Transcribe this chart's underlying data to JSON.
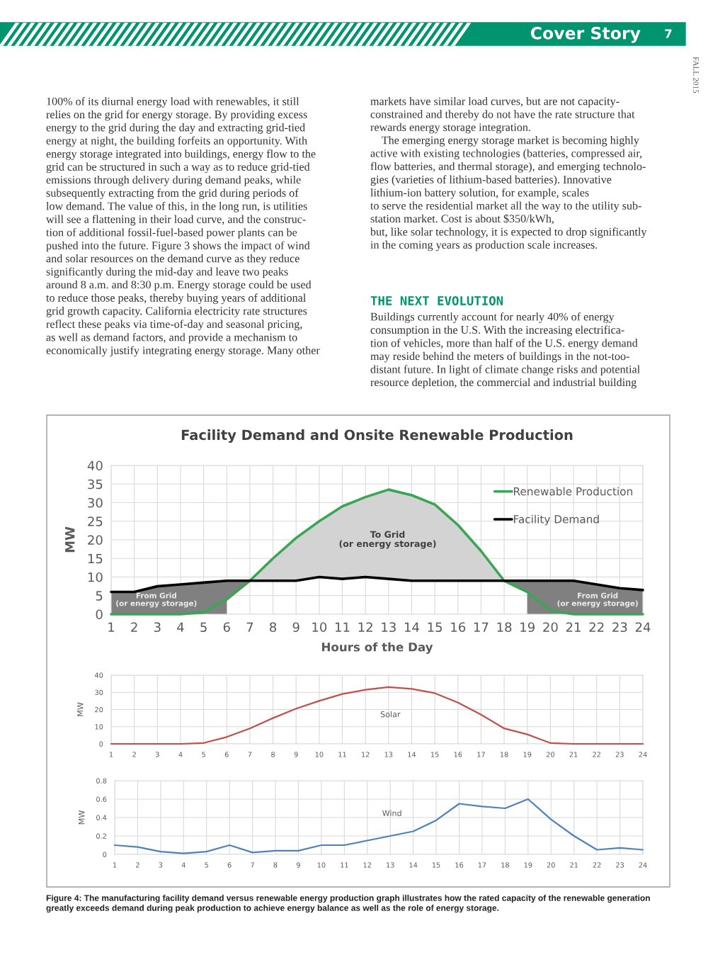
{
  "chart_data": [
    {
      "type": "line",
      "title": "Facility Demand and Onsite Renewable Production",
      "xlabel": "Hours of the Day",
      "ylabel": "MW",
      "x": [
        1,
        2,
        3,
        4,
        5,
        6,
        7,
        8,
        9,
        10,
        11,
        12,
        13,
        14,
        15,
        16,
        17,
        18,
        19,
        20,
        21,
        22,
        23,
        24
      ],
      "xlim": [
        1,
        24
      ],
      "xticks": [
        1,
        2,
        3,
        4,
        5,
        6,
        7,
        8,
        9,
        10,
        11,
        12,
        13,
        14,
        15,
        16,
        17,
        18,
        19,
        20,
        21,
        22,
        23,
        24
      ],
      "ylim": [
        0,
        40
      ],
      "yticks": [
        0,
        5,
        10,
        15,
        20,
        25,
        30,
        35,
        40
      ],
      "grid": true,
      "legend": "top right",
      "series": [
        {
          "name": "Renewable Production",
          "color": "#3aa655",
          "values": [
            0,
            0,
            0,
            0,
            0.5,
            4,
            9,
            15,
            20.5,
            25,
            29,
            31.5,
            33.5,
            32,
            29.5,
            24,
            17,
            9,
            6,
            1,
            0,
            0,
            0,
            0
          ]
        },
        {
          "name": "Facility Demand",
          "color": "#000000",
          "values": [
            6,
            6,
            7.5,
            8,
            8.5,
            9,
            9,
            9,
            9,
            10,
            9.5,
            10,
            9.5,
            9,
            9,
            9,
            9,
            9,
            9,
            9,
            9,
            8,
            7,
            6.5
          ]
        }
      ],
      "annotations": [
        "To Grid\n(or energy storage)",
        "From Grid\n(or energy storage)",
        "From Grid\n(or energy storage)",
        "Cover Story",
        "7",
        "FALL 2015",
        "100% of its diurnal energy load with renewables, it still\nrelies on the grid for energy storage. By providing excess\nenergy to the grid during the day and extracting grid-tied\nenergy at night, the building forfeits an opportunity. With\nenergy storage integrated into buildings, energy flow to the\ngrid can be structured in such a way as to reduce grid-tied\nemissions through delivery during demand peaks, while\nsubsequently extracting from the grid during periods of\nlow demand. The value of this, in the long run, is utilities\nwill see a flattening in their load curve, and the construc-\ntion of additional fossil-fuel-based power plants can be\npushed into the future. Figure 3 shows the impact of wind\nand solar resources on the demand curve as they reduce\nsignificantly during the mid-day and leave two peaks\naround 8 a.m. and 8:30 p.m. Energy storage could be used\nto reduce those peaks, thereby buying years of additional\ngrid growth capacity. California electricity rate structures\nreflect these peaks via time-of-day and seasonal pricing,\nas well as demand factors, and provide a mechanism to\neconomically justify integrating energy storage. Many other",
        "markets have similar load curves, but are not capacity-\nconstrained and thereby do not have the rate structure that\nrewards energy storage integration.\n    The emerging energy storage market is becoming highly\nactive with existing technologies (batteries, compressed air,\nflow batteries, and thermal storage), and emerging technolo-\ngies (varieties of lithium-based batteries). Innovative\nlithium-ion battery solution, for example, scales\nto serve the residential market all the way to the utility sub-\nstation market. Cost is about $350/kWh,\nbut, like solar technology, it is expected to drop significantly\nin the coming years as production scale increases.",
        "THE NEXT EVOLUTION",
        "Buildings currently account for nearly 40% of energy\nconsumption in the U.S. With the increasing electrifica-\ntion of vehicles, more than half of the U.S. energy demand\nmay reside behind the meters of buildings in the not-too-\ndistant future. In light of climate change risks and potential\nresource depletion, the commercial and industrial building",
        "Figure 4: The manufacturing facility demand versus renewable energy production graph illustrates how the rated capacity of the renewable generation\ngreatly exceeds demand during peak production to achieve energy balance as well as the role of energy storage."
      ]
    },
    {
      "type": "line",
      "ylabel": "MW",
      "x": [
        1,
        2,
        3,
        4,
        5,
        6,
        7,
        8,
        9,
        10,
        11,
        12,
        13,
        14,
        15,
        16,
        17,
        18,
        19,
        20,
        21,
        22,
        23,
        24
      ],
      "xlim": [
        1,
        24
      ],
      "xticks": [
        1,
        2,
        3,
        4,
        5,
        6,
        7,
        8,
        9,
        10,
        11,
        12,
        13,
        14,
        15,
        16,
        17,
        18,
        19,
        20,
        21,
        22,
        23,
        24
      ],
      "ylim": [
        0,
        40
      ],
      "yticks": [
        0,
        10,
        20,
        30,
        40
      ],
      "grid": true,
      "series": [
        {
          "color": "#c0504d",
          "values": [
            0,
            0,
            0,
            0,
            0.5,
            4,
            9,
            15,
            20.5,
            25,
            29,
            31.5,
            33,
            32,
            29.5,
            24,
            17,
            9,
            5.5,
            0.5,
            0,
            0,
            0,
            0
          ]
        }
      ],
      "annotations": [
        "Solar"
      ]
    },
    {
      "type": "line",
      "ylabel": "MW",
      "x": [
        1,
        2,
        3,
        4,
        5,
        6,
        7,
        8,
        9,
        10,
        11,
        12,
        13,
        14,
        15,
        16,
        17,
        18,
        19,
        20,
        21,
        22,
        23,
        24
      ],
      "xlim": [
        1,
        24
      ],
      "xticks": [
        1,
        2,
        3,
        4,
        5,
        6,
        7,
        8,
        9,
        10,
        11,
        12,
        13,
        14,
        15,
        16,
        17,
        18,
        19,
        20,
        21,
        22,
        23,
        24
      ],
      "ylim": [
        0,
        0.8
      ],
      "yticks": [
        0,
        0.2,
        0.4,
        0.6,
        0.8
      ],
      "grid": true,
      "series": [
        {
          "color": "#4f81bd",
          "values": [
            0.1,
            0.08,
            0.03,
            0.01,
            0.03,
            0.1,
            0.02,
            0.04,
            0.04,
            0.1,
            0.1,
            0.15,
            0.2,
            0.25,
            0.37,
            0.55,
            0.52,
            0.5,
            0.6,
            0.38,
            0.2,
            0.05,
            0.07,
            0.05
          ]
        }
      ],
      "annotations": [
        "Wind"
      ]
    }
  ]
}
